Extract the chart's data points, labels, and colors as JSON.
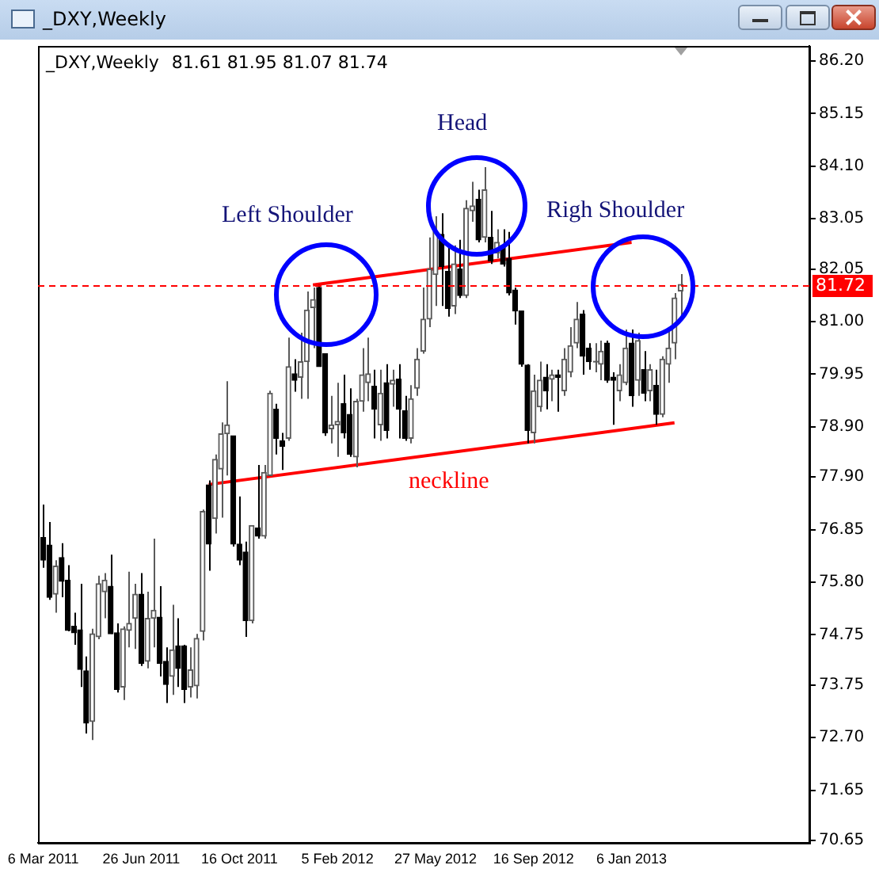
{
  "chart_data": {
    "type": "candlestick",
    "title": "_DXY,Weekly",
    "subtitle": "81.61 81.95 81.07 81.74",
    "colors": [
      "#000000",
      "#000000",
      "#5a5a5a",
      "#000000",
      "#000000",
      "#000000",
      "#000000",
      "#000000",
      "#5a5a5a",
      "#5a5a5a",
      "#5a5a5a",
      "#000000",
      "#000000",
      "#5a5a5a",
      "#5a5a5a",
      "#5a5a5a",
      "#000000",
      "#5a5a5a",
      "#5a5a5a",
      "#000000",
      "#000000",
      "#5a5a5a",
      "#000000",
      "#000000",
      "#5a5a5a",
      "#5a5a5a",
      "#5a5a5a",
      "#000000",
      "#5a5a5a",
      "#5a5a5a",
      "#5a5a5a",
      "#000000",
      "#000000",
      "#000000",
      "#5a5a5a",
      "#000000",
      "#5a5a5a",
      "#5a5a5a",
      "#000000",
      "#000000",
      "#5a5a5a",
      "#000000",
      "#5a5a5a",
      "#5a5a5a",
      "#5a5a5a",
      "#000000",
      "#000000",
      "#5a5a5a",
      "#5a5a5a",
      "#000000",
      "#000000",
      "#5a5a5a",
      "#5a5a5a",
      "#5a5a5a",
      "#000000",
      "#5a5a5a",
      "#000000",
      "#5a5a5a",
      "#000000",
      "#000000",
      "#5a5a5a",
      "#5a5a5a",
      "#5a5a5a",
      "#5a5a5a",
      "#5a5a5a",
      "#000000",
      "#000000",
      "#5a5a5a",
      "#000000",
      "#5a5a5a",
      "#5a5a5a",
      "#000000",
      "#5a5a5a",
      "#000000",
      "#5a5a5a",
      "#000000",
      "#000000",
      "#000000",
      "#000000",
      "#000000",
      "#5a5a5a",
      "#5a5a5a",
      "#000000",
      "#5a5a5a",
      "#000000",
      "#5a5a5a",
      "#5a5a5a",
      "#5a5a5a",
      "#000000",
      "#000000",
      "#5a5a5a",
      "#5a5a5a",
      "#000000",
      "#000000",
      "#5a5a5a",
      "#5a5a5a",
      "#000000",
      "#5a5a5a",
      "#000000",
      "#5a5a5a",
      "#000000",
      "#5a5a5a",
      "#5a5a5a",
      "#5a5a5a",
      "#5a5a5a"
    ],
    "x": [
      "2011-03-06",
      "2011-03-13",
      "2011-03-20",
      "2011-03-27",
      "2011-04-03",
      "2011-04-10",
      "2011-04-17",
      "2011-04-24",
      "2011-05-01",
      "2011-05-08",
      "2011-05-15",
      "2011-05-22",
      "2011-05-29",
      "2011-06-05",
      "2011-06-12",
      "2011-06-19",
      "2011-06-26",
      "2011-07-03",
      "2011-07-10",
      "2011-07-17",
      "2011-07-24",
      "2011-07-31",
      "2011-08-07",
      "2011-08-14",
      "2011-08-21",
      "2011-08-28",
      "2011-09-04",
      "2011-09-11",
      "2011-09-18",
      "2011-09-25",
      "2011-10-02",
      "2011-10-09",
      "2011-10-16",
      "2011-10-23",
      "2011-10-30",
      "2011-11-06",
      "2011-11-13",
      "2011-11-20",
      "2011-11-27",
      "2011-12-04",
      "2011-12-11",
      "2011-12-18",
      "2011-12-25",
      "2012-01-01",
      "2012-01-08",
      "2012-01-15",
      "2012-01-22",
      "2012-01-29",
      "2012-02-05",
      "2012-02-12",
      "2012-02-19",
      "2012-02-26",
      "2012-03-04",
      "2012-03-11",
      "2012-03-18",
      "2012-03-25",
      "2012-04-01",
      "2012-04-08",
      "2012-04-15",
      "2012-04-22",
      "2012-04-29",
      "2012-05-06",
      "2012-05-13",
      "2012-05-20",
      "2012-05-27",
      "2012-06-03",
      "2012-06-10",
      "2012-06-17",
      "2012-06-24",
      "2012-07-01",
      "2012-07-08",
      "2012-07-15",
      "2012-07-22",
      "2012-07-29",
      "2012-08-05",
      "2012-08-12",
      "2012-08-19",
      "2012-08-26",
      "2012-09-02",
      "2012-09-09",
      "2012-09-16",
      "2012-09-23",
      "2012-09-30",
      "2012-10-07",
      "2012-10-14",
      "2012-10-21",
      "2012-10-28",
      "2012-11-04",
      "2012-11-11",
      "2012-11-18",
      "2012-11-25",
      "2012-12-02",
      "2012-12-09",
      "2012-12-16",
      "2012-12-23",
      "2012-12-30",
      "2013-01-06",
      "2013-01-13",
      "2013-01-20",
      "2013-01-27",
      "2013-02-03",
      "2013-02-10",
      "2013-02-17",
      "2013-02-24",
      "2013-03-03"
    ],
    "ohlc": [
      [
        76.69,
        77.35,
        76.09,
        76.24
      ],
      [
        76.54,
        77.0,
        75.45,
        75.5
      ],
      [
        75.56,
        76.24,
        75.19,
        76.12
      ],
      [
        76.29,
        76.58,
        75.5,
        75.82
      ],
      [
        75.84,
        76.14,
        74.82,
        74.84
      ],
      [
        74.92,
        75.19,
        74.55,
        74.79
      ],
      [
        74.85,
        75.77,
        73.71,
        74.06
      ],
      [
        74.03,
        74.32,
        72.78,
        72.99
      ],
      [
        73.02,
        74.87,
        72.65,
        74.77
      ],
      [
        74.71,
        75.93,
        74.66,
        75.77
      ],
      [
        75.61,
        75.98,
        75.08,
        75.84
      ],
      [
        75.72,
        76.35,
        74.77,
        74.77
      ],
      [
        74.79,
        74.98,
        73.6,
        73.66
      ],
      [
        73.71,
        74.92,
        73.45,
        74.87
      ],
      [
        74.84,
        76.01,
        74.5,
        74.98
      ],
      [
        75.08,
        75.77,
        74.47,
        75.56
      ],
      [
        75.56,
        75.98,
        74.13,
        74.18
      ],
      [
        74.22,
        75.61,
        74.08,
        75.08
      ],
      [
        75.08,
        76.67,
        74.5,
        75.24
      ],
      [
        75.1,
        75.72,
        73.92,
        74.18
      ],
      [
        74.22,
        74.5,
        73.39,
        73.76
      ],
      [
        73.92,
        75.35,
        73.55,
        74.45
      ],
      [
        74.53,
        75.08,
        73.71,
        74.08
      ],
      [
        74.53,
        74.55,
        73.39,
        73.66
      ],
      [
        73.71,
        74.5,
        73.5,
        74.05
      ],
      [
        73.73,
        74.77,
        73.48,
        74.68
      ],
      [
        74.82,
        77.25,
        74.64,
        77.21
      ],
      [
        77.74,
        77.83,
        76.03,
        76.56
      ],
      [
        77.07,
        78.35,
        76.77,
        78.25
      ],
      [
        78.06,
        78.99,
        77.09,
        78.76
      ],
      [
        78.76,
        79.81,
        77.93,
        78.94
      ],
      [
        78.72,
        78.72,
        76.51,
        76.56
      ],
      [
        76.56,
        77.51,
        76.14,
        76.24
      ],
      [
        76.4,
        76.61,
        74.71,
        75.03
      ],
      [
        75.03,
        76.93,
        74.98,
        76.93
      ],
      [
        76.88,
        78.14,
        76.67,
        76.72
      ],
      [
        76.72,
        78.14,
        76.67,
        77.99
      ],
      [
        77.93,
        79.62,
        77.93,
        79.57
      ],
      [
        79.25,
        79.36,
        78.35,
        78.67
      ],
      [
        78.62,
        78.78,
        78.04,
        78.51
      ],
      [
        78.67,
        80.68,
        78.62,
        80.1
      ],
      [
        79.96,
        80.25,
        79.6,
        79.83
      ],
      [
        79.89,
        80.78,
        79.46,
        80.2
      ],
      [
        80.2,
        81.6,
        79.46,
        81.23
      ],
      [
        81.28,
        81.68,
        80.47,
        81.44
      ],
      [
        81.68,
        81.73,
        80.1,
        80.1
      ],
      [
        80.36,
        80.36,
        78.72,
        78.78
      ],
      [
        78.86,
        79.52,
        78.57,
        78.94
      ],
      [
        78.94,
        79.78,
        78.3,
        79.01
      ],
      [
        79.36,
        79.94,
        78.67,
        78.78
      ],
      [
        79.15,
        79.67,
        78.3,
        78.35
      ],
      [
        78.3,
        79.46,
        78.09,
        79.41
      ],
      [
        79.41,
        80.47,
        79.2,
        79.94
      ],
      [
        79.78,
        80.68,
        79.41,
        79.96
      ],
      [
        79.71,
        80.04,
        78.67,
        79.25
      ],
      [
        78.94,
        80.04,
        78.62,
        79.57
      ],
      [
        79.78,
        80.15,
        78.67,
        78.83
      ],
      [
        79.75,
        80.04,
        79.3,
        79.83
      ],
      [
        79.85,
        80.15,
        78.67,
        79.25
      ],
      [
        79.22,
        79.52,
        78.62,
        78.67
      ],
      [
        78.67,
        79.73,
        78.57,
        79.46
      ],
      [
        79.67,
        80.47,
        79.52,
        80.25
      ],
      [
        80.41,
        81.68,
        80.36,
        81.05
      ],
      [
        81.05,
        82.68,
        80.89,
        82.05
      ],
      [
        81.94,
        83.1,
        81.31,
        82.79
      ],
      [
        82.74,
        83.16,
        81.31,
        82.1
      ],
      [
        82.0,
        82.47,
        81.1,
        81.26
      ],
      [
        81.31,
        82.52,
        81.15,
        82.15
      ],
      [
        82.05,
        82.63,
        81.47,
        81.52
      ],
      [
        81.52,
        83.42,
        81.47,
        83.26
      ],
      [
        83.21,
        83.79,
        82.99,
        83.31
      ],
      [
        83.44,
        83.63,
        82.58,
        82.63
      ],
      [
        82.68,
        84.08,
        82.58,
        83.63
      ],
      [
        82.68,
        83.21,
        82.15,
        82.21
      ],
      [
        82.37,
        82.84,
        82.26,
        82.58
      ],
      [
        82.52,
        82.84,
        82.1,
        82.15
      ],
      [
        82.26,
        82.79,
        81.52,
        81.57
      ],
      [
        81.63,
        81.68,
        80.94,
        81.21
      ],
      [
        81.21,
        81.21,
        80.1,
        80.15
      ],
      [
        80.13,
        80.15,
        78.57,
        78.83
      ],
      [
        78.78,
        79.94,
        78.57,
        79.62
      ],
      [
        79.3,
        80.2,
        79.2,
        79.83
      ],
      [
        79.89,
        80.15,
        79.25,
        79.62
      ],
      [
        79.85,
        80.04,
        79.41,
        79.94
      ],
      [
        79.94,
        80.04,
        79.2,
        79.89
      ],
      [
        79.62,
        80.47,
        79.52,
        80.25
      ],
      [
        79.99,
        80.89,
        79.89,
        80.52
      ],
      [
        80.57,
        81.39,
        80.47,
        81.05
      ],
      [
        81.15,
        81.23,
        79.94,
        80.31
      ],
      [
        80.47,
        80.57,
        80.04,
        80.2
      ],
      [
        80.2,
        80.57,
        79.99,
        80.2
      ],
      [
        80.15,
        80.62,
        79.83,
        80.41
      ],
      [
        80.57,
        80.62,
        79.78,
        79.83
      ],
      [
        79.89,
        79.99,
        78.94,
        79.83
      ],
      [
        79.62,
        80.15,
        79.41,
        79.94
      ],
      [
        79.78,
        80.84,
        79.73,
        80.47
      ],
      [
        80.57,
        80.84,
        79.3,
        79.52
      ],
      [
        79.83,
        80.78,
        79.52,
        80.62
      ],
      [
        80.04,
        80.41,
        79.41,
        79.57
      ],
      [
        79.62,
        80.15,
        79.41,
        80.04
      ],
      [
        79.73,
        80.04,
        78.94,
        79.15
      ],
      [
        79.15,
        80.31,
        79.09,
        80.25
      ],
      [
        80.15,
        80.84,
        79.78,
        80.47
      ],
      [
        80.57,
        81.57,
        80.25,
        81.47
      ],
      [
        81.61,
        81.95,
        81.07,
        81.74
      ]
    ],
    "series": [
      {
        "type": "line",
        "color": "#ff0000",
        "x": [
          "2011-09-11",
          "2013-02-24"
        ],
        "values": [
          77.75,
          78.98
        ]
      },
      {
        "type": "line",
        "color": "#ff0000",
        "x": [
          "2012-01-08",
          "2013-01-06"
        ],
        "values": [
          81.73,
          82.58
        ]
      }
    ],
    "ref_lines": [
      {
        "axis": "y",
        "value": 81.72,
        "label": "81.72",
        "color": "#ff0000",
        "line_style": "dashed"
      }
    ],
    "annotations": [
      "Left Shoulder",
      "Head",
      "Righ Shoulder",
      "neckline"
    ],
    "xlim": [
      "2011-02-28",
      "2013-07-28"
    ],
    "xticks": [
      {
        "value": "2011-03-06",
        "label": "6 Mar 2011"
      },
      {
        "value": "2011-06-26",
        "label": "26 Jun 2011"
      },
      {
        "value": "2011-10-16",
        "label": "16 Oct 2011"
      },
      {
        "value": "2012-02-05",
        "label": "5 Feb 2012"
      },
      {
        "value": "2012-05-27",
        "label": "27 May 2012"
      },
      {
        "value": "2012-09-16",
        "label": "16 Sep 2012"
      },
      {
        "value": "2013-01-06",
        "label": "6 Jan 2013"
      }
    ],
    "ylim": [
      70.6,
      86.5
    ],
    "yticks": [
      {
        "value": 70.65,
        "label": "70.65"
      },
      {
        "value": 71.65,
        "label": "71.65"
      },
      {
        "value": 72.7,
        "label": "72.70"
      },
      {
        "value": 73.75,
        "label": "73.75"
      },
      {
        "value": 74.75,
        "label": "74.75"
      },
      {
        "value": 75.8,
        "label": "75.80"
      },
      {
        "value": 76.85,
        "label": "76.85"
      },
      {
        "value": 77.9,
        "label": "77.90"
      },
      {
        "value": 78.9,
        "label": "78.90"
      },
      {
        "value": 79.95,
        "label": "79.95"
      },
      {
        "value": 81.0,
        "label": "81.00"
      },
      {
        "value": 82.05,
        "label": "82.05"
      },
      {
        "value": 83.05,
        "label": "83.05"
      },
      {
        "value": 84.1,
        "label": "84.10"
      },
      {
        "value": 85.15,
        "label": "85.15"
      },
      {
        "value": 86.2,
        "label": "86.20"
      }
    ]
  }
}
